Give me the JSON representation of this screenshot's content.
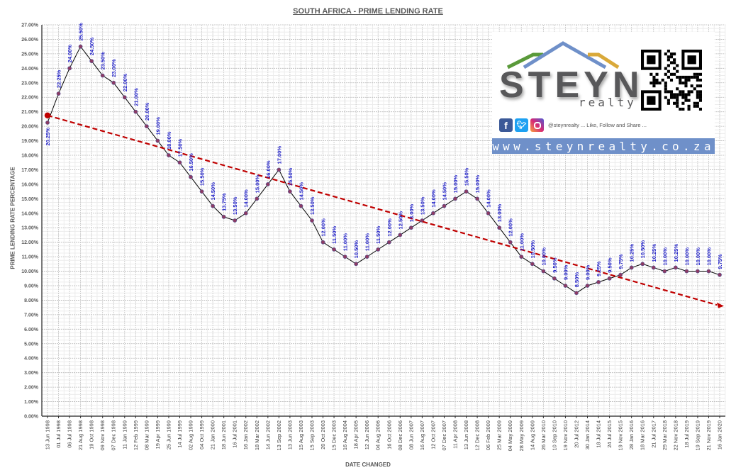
{
  "chart_data": {
    "type": "line",
    "title": "SOUTH AFRICA - PRIME LENDING RATE",
    "xlabel": "DATE CHANGED",
    "ylabel": "PRIME LENDING RATE PERCENTAGE",
    "ylim": [
      0,
      27
    ],
    "yticks": [
      "0.00%",
      "1.00%",
      "2.00%",
      "3.00%",
      "4.00%",
      "5.00%",
      "6.00%",
      "7.00%",
      "8.00%",
      "9.00%",
      "10.00%",
      "11.00%",
      "12.00%",
      "13.00%",
      "14.00%",
      "15.00%",
      "16.00%",
      "17.00%",
      "18.00%",
      "19.00%",
      "20.00%",
      "21.00%",
      "22.00%",
      "23.00%",
      "24.00%",
      "25.00%",
      "26.00%",
      "27.00%"
    ],
    "grid": true,
    "legend": "none",
    "categories": [
      "13 Jun 1998",
      "01 Jul 1998",
      "06 Jul 1998",
      "21 Aug 1998",
      "19 Oct 1998",
      "09 Nov 1998",
      "07 Dec 1998",
      "11 Jan 1999",
      "12 Feb 1999",
      "08 Mar 1999",
      "19 Apr 1999",
      "25 Jun 1999",
      "14 Jul 1999",
      "02 Aug 1999",
      "04 Oct 1999",
      "21 Jan 2000",
      "18 Jun 2001",
      "16 Jul 2001",
      "16 Jan 2002",
      "18 Mar 2002",
      "14 Jun 2002",
      "13 Sep 2002",
      "13 Jun 2003",
      "15 Aug 2003",
      "15 Sep 2003",
      "20 Oct 2003",
      "15 Dec 2003",
      "16 Aug 2004",
      "18 Apr 2005",
      "12 Jun 2006",
      "04 Aug 2006",
      "16 Oct 2006",
      "08 Dec 2006",
      "08 Jun 2007",
      "16 Aug 2007",
      "12 Oct 2007",
      "07 Dec 2007",
      "11 Apr 2008",
      "13 Jun 2008",
      "12 Dec 2008",
      "06 Feb 2009",
      "25 Mar 2009",
      "04 May 2009",
      "28 May 2009",
      "14 Aug 2009",
      "26 Mar 2010",
      "10 Sep 2010",
      "19 Nov 2010",
      "20 Jul 2012",
      "30 Jan 2014",
      "18 Jul 2014",
      "24 Jul 2015",
      "19 Nov 2015",
      "28 Jan 2016",
      "18 Mar 2016",
      "21 Jul 2017",
      "29 Mar 2018",
      "22 Nov 2018",
      "18 Jul 2019",
      "19 Sep 2019",
      "21 Nov 2019",
      "16 Jan 2020"
    ],
    "series": [
      {
        "name": "Prime Lending Rate",
        "color": "#000000",
        "marker_color": "#8b3a62",
        "values": [
          20.25,
          22.25,
          24.0,
          25.5,
          24.5,
          23.5,
          23.0,
          22.0,
          21.0,
          20.0,
          19.0,
          18.0,
          17.5,
          16.5,
          15.5,
          14.5,
          13.75,
          13.5,
          14.0,
          15.0,
          16.0,
          17.0,
          15.5,
          14.5,
          13.5,
          12.0,
          11.5,
          11.0,
          10.5,
          11.0,
          11.5,
          12.0,
          12.5,
          13.0,
          13.5,
          14.0,
          14.5,
          15.0,
          15.5,
          15.0,
          14.0,
          13.0,
          12.0,
          11.0,
          10.5,
          10.0,
          9.5,
          9.0,
          8.5,
          9.0,
          9.25,
          9.5,
          9.75,
          10.25,
          10.5,
          10.25,
          10.0,
          10.25,
          10.0,
          10.0,
          10.0,
          9.75
        ],
        "labels": [
          "20.25%",
          "22.25%",
          "24.00%",
          "25.50%",
          "24.50%",
          "23.50%",
          "23.00%",
          "22.00%",
          "21.00%",
          "20.00%",
          "19.00%",
          "18.00%",
          "17.50%",
          "16.50%",
          "15.50%",
          "14.50%",
          "13.75%",
          "13.50%",
          "14.00%",
          "15.00%",
          "16.00%",
          "17.00%",
          "15.50%",
          "14.50%",
          "13.50%",
          "12.00%",
          "11.50%",
          "11.00%",
          "10.50%",
          "11.00%",
          "11.50%",
          "12.00%",
          "12.50%",
          "13.00%",
          "13.50%",
          "14.00%",
          "14.50%",
          "15.00%",
          "15.50%",
          "15.00%",
          "14.00%",
          "13.00%",
          "12.00%",
          "11.00%",
          "10.50%",
          "10.00%",
          "9.50%",
          "9.00%",
          "8.50%",
          "9.00%",
          "9.25%",
          "9.50%",
          "9.75%",
          "10.25%",
          "10.50%",
          "10.25%",
          "10.00%",
          "10.25%",
          "10.00%",
          "10.00%",
          "10.00%",
          "9.75%"
        ]
      },
      {
        "name": "Trend",
        "style": "dashed-arrow",
        "color": "#c00000",
        "start": 20.75,
        "end": 7.6
      }
    ]
  },
  "branding": {
    "brand_name": "STEYN",
    "brand_sub": "realty",
    "social_text": "@steynrealty ... Like, Follow and Share ...",
    "website": "www.steynrealty.co.za",
    "roof_colors": [
      "#5a9a3a",
      "#6f90c9",
      "#d9a93a"
    ],
    "social_icons": [
      "facebook-icon",
      "twitter-icon",
      "instagram-icon"
    ]
  }
}
